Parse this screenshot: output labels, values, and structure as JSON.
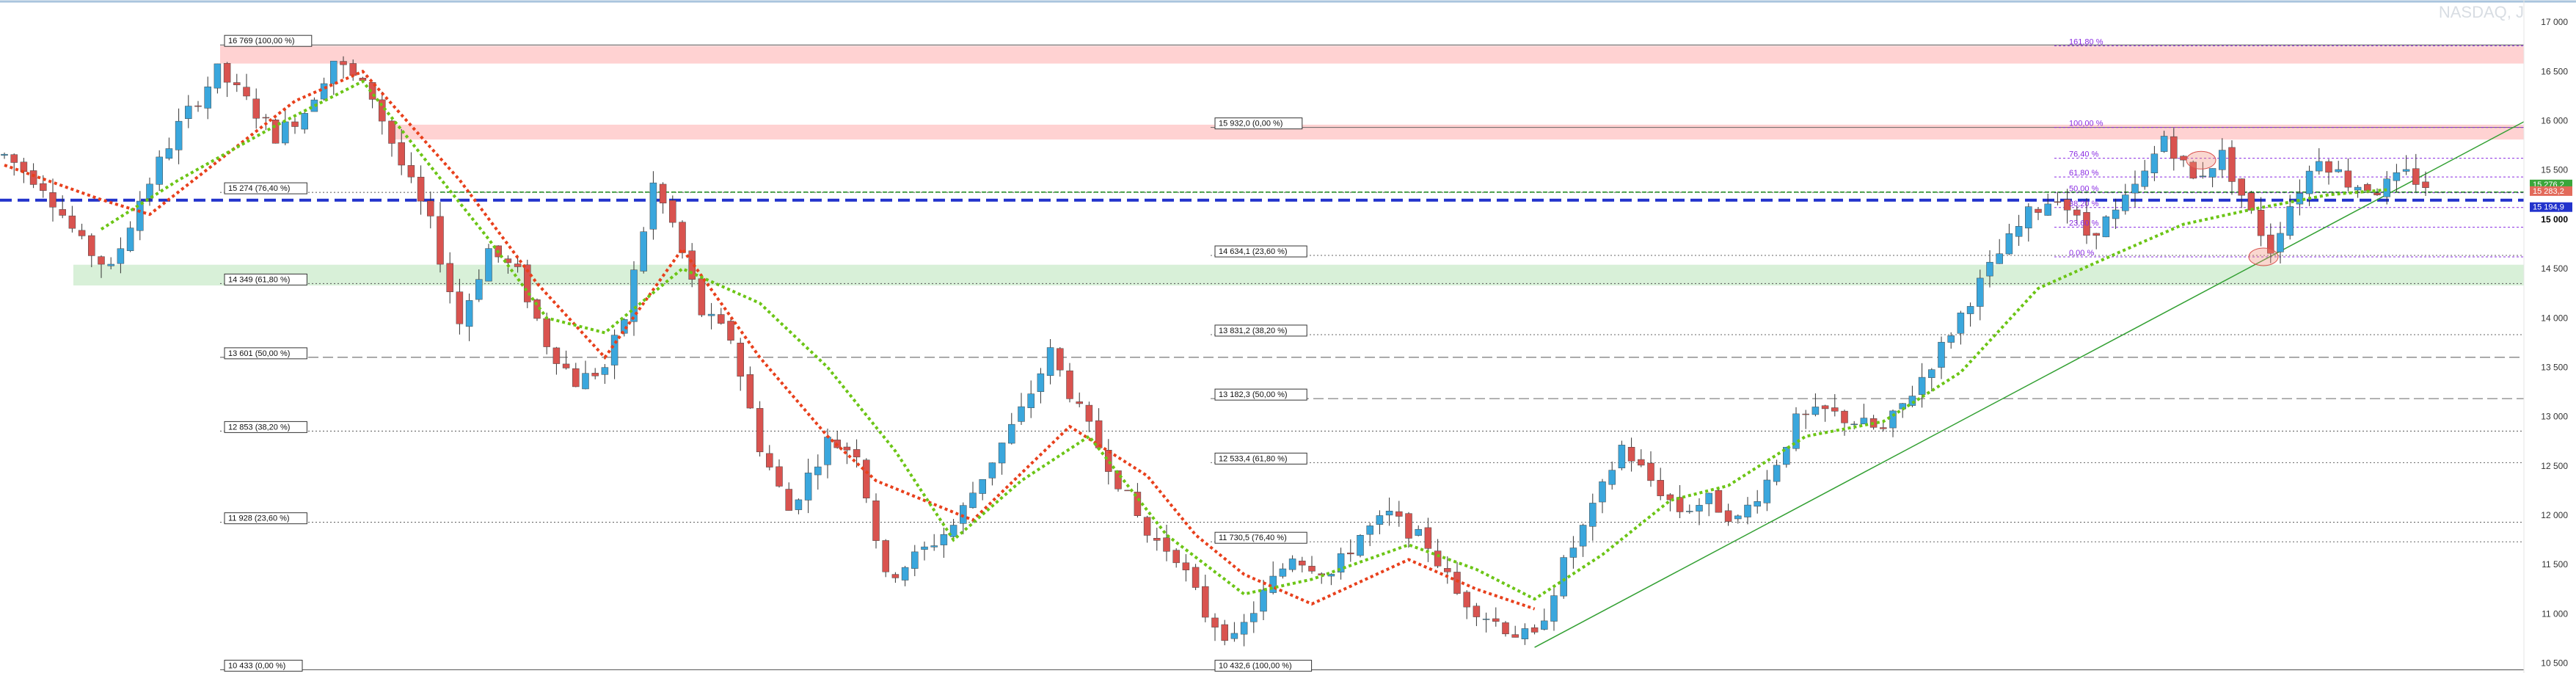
{
  "window": {
    "symbol_label": "NASDAQ, J"
  },
  "chart_data": {
    "type": "candlestick",
    "y_axis": {
      "range": [
        10400,
        17150
      ],
      "ticks": [
        17000,
        16500,
        16000,
        15500,
        15000,
        14500,
        14000,
        13500,
        13000,
        12500,
        12000,
        11500,
        11000,
        10500
      ],
      "tick_labels": [
        "17 000",
        "16 500",
        "16 000",
        "15 500",
        "15 000",
        "14 500",
        "14 000",
        "13 500",
        "13 000",
        "12 500",
        "12 000",
        "11 500",
        "11 000",
        "10 500"
      ],
      "bold_tick": "15 000"
    },
    "left_fibonacci": [
      {
        "label": "16 769 (100,00 %)",
        "value": 16769
      },
      {
        "label": "15 274 (76,40 %)",
        "value": 15274
      },
      {
        "label": "14 349 (61,80 %)",
        "value": 14349
      },
      {
        "label": "13 601 (50,00 %)",
        "value": 13601
      },
      {
        "label": "12 853 (38,20 %)",
        "value": 12853
      },
      {
        "label": "11 928 (23,60 %)",
        "value": 11928
      },
      {
        "label": "10 433 (0,00 %)",
        "value": 10433
      }
    ],
    "mid_fibonacci": [
      {
        "label": "15 932,0 (0,00 %)",
        "value": 15932
      },
      {
        "label": "14 634,1 (23,60 %)",
        "value": 14634.1
      },
      {
        "label": "13 831,2 (38,20 %)",
        "value": 13831.2
      },
      {
        "label": "13 182,3 (50,00 %)",
        "value": 13182.3
      },
      {
        "label": "12 533,4 (61,80 %)",
        "value": 12533.4
      },
      {
        "label": "11 730,5 (76,40 %)",
        "value": 11730.5
      },
      {
        "label": "10 432,6 (100,00 %)",
        "value": 10432.6
      }
    ],
    "right_fibonacci": [
      {
        "label": "161,80 %",
        "value": 16760
      },
      {
        "label": "100,00 %",
        "value": 15932
      },
      {
        "label": "76,40 %",
        "value": 15620
      },
      {
        "label": "61,80 %",
        "value": 15430
      },
      {
        "label": "50,00 %",
        "value": 15270
      },
      {
        "label": "38,20 %",
        "value": 15120
      },
      {
        "label": "23,60 %",
        "value": 14920
      },
      {
        "label": "0,00 %",
        "value": 14620
      }
    ],
    "zones": [
      {
        "name": "resistance-upper",
        "from": 16580,
        "to": 16760,
        "color": "#ffd2d2"
      },
      {
        "name": "resistance-lower",
        "from": 15810,
        "to": 15960,
        "color": "#ffd2d2"
      },
      {
        "name": "support",
        "from": 14330,
        "to": 14540,
        "color": "#d8f0d8"
      }
    ],
    "horizontal_lines": [
      {
        "name": "blue-level",
        "value": 15195,
        "color": "#2233cc",
        "style": "dashed-thick"
      },
      {
        "name": "green-level",
        "value": 15276,
        "color": "#1a8a1a",
        "style": "dashed"
      }
    ],
    "price_tags": [
      {
        "label": "15 276,2",
        "value": 15276,
        "color": "#3aa63a"
      },
      {
        "label": "15 283,2",
        "value": 15283,
        "color": "#e26a5a"
      },
      {
        "label": "15 194,9",
        "value": 15195,
        "color": "#2233cc"
      }
    ],
    "trendline": {
      "from": {
        "bar": 158,
        "value": 10660
      },
      "to": {
        "bar": 250,
        "value": 15990
      },
      "color": "#33a033"
    },
    "bar_count": 250,
    "price_path": [
      [
        0,
        15650
      ],
      [
        4,
        15350
      ],
      [
        8,
        14750
      ],
      [
        11,
        14480
      ],
      [
        14,
        15200
      ],
      [
        18,
        15950
      ],
      [
        22,
        16500
      ],
      [
        25,
        16200
      ],
      [
        28,
        15850
      ],
      [
        31,
        16100
      ],
      [
        34,
        16620
      ],
      [
        38,
        16250
      ],
      [
        41,
        15550
      ],
      [
        44,
        14950
      ],
      [
        47,
        13950
      ],
      [
        50,
        14700
      ],
      [
        53,
        14450
      ],
      [
        56,
        13750
      ],
      [
        59,
        13350
      ],
      [
        62,
        13500
      ],
      [
        64,
        14000
      ],
      [
        67,
        15350
      ],
      [
        69,
        14950
      ],
      [
        72,
        14050
      ],
      [
        75,
        13800
      ],
      [
        78,
        12700
      ],
      [
        81,
        12050
      ],
      [
        85,
        12750
      ],
      [
        88,
        12650
      ],
      [
        91,
        11350
      ],
      [
        95,
        11650
      ],
      [
        98,
        11900
      ],
      [
        101,
        12400
      ],
      [
        105,
        13050
      ],
      [
        108,
        13650
      ],
      [
        111,
        13050
      ],
      [
        115,
        12350
      ],
      [
        118,
        11800
      ],
      [
        121,
        11600
      ],
      [
        124,
        11000
      ],
      [
        127,
        10720
      ],
      [
        130,
        11200
      ],
      [
        133,
        11600
      ],
      [
        137,
        11400
      ],
      [
        140,
        11800
      ],
      [
        143,
        12000
      ],
      [
        147,
        11700
      ],
      [
        150,
        11200
      ],
      [
        153,
        10980
      ],
      [
        156,
        10800
      ],
      [
        158,
        10750
      ],
      [
        161,
        11500
      ],
      [
        164,
        12050
      ],
      [
        167,
        12700
      ],
      [
        170,
        12350
      ],
      [
        173,
        12050
      ],
      [
        176,
        12150
      ],
      [
        179,
        11950
      ],
      [
        182,
        12350
      ],
      [
        185,
        12950
      ],
      [
        188,
        13050
      ],
      [
        191,
        12950
      ],
      [
        194,
        12850
      ],
      [
        197,
        13250
      ],
      [
        200,
        13700
      ],
      [
        203,
        14200
      ],
      [
        206,
        14650
      ],
      [
        209,
        15050
      ],
      [
        212,
        15250
      ],
      [
        215,
        14850
      ],
      [
        218,
        15050
      ],
      [
        221,
        15450
      ],
      [
        223,
        15850
      ],
      [
        226,
        15400
      ],
      [
        229,
        15650
      ],
      [
        232,
        15050
      ],
      [
        234,
        14700
      ],
      [
        236,
        15150
      ],
      [
        239,
        15650
      ],
      [
        242,
        15380
      ],
      [
        245,
        15300
      ],
      [
        248,
        15450
      ],
      [
        250,
        15350
      ]
    ],
    "ma_red": [
      [
        0,
        15550
      ],
      [
        10,
        15200
      ],
      [
        15,
        15050
      ],
      [
        30,
        16200
      ],
      [
        37,
        16500
      ],
      [
        47,
        15400
      ],
      [
        55,
        14350
      ],
      [
        62,
        13600
      ],
      [
        70,
        14700
      ],
      [
        78,
        13600
      ],
      [
        85,
        12800
      ],
      [
        90,
        12350
      ],
      [
        100,
        11950
      ],
      [
        110,
        12900
      ],
      [
        118,
        12400
      ],
      [
        123,
        11800
      ],
      [
        128,
        11400
      ],
      [
        135,
        11100
      ],
      [
        145,
        11550
      ],
      [
        152,
        11250
      ],
      [
        158,
        11050
      ]
    ],
    "ma_green": [
      [
        10,
        14900
      ],
      [
        18,
        15400
      ],
      [
        28,
        15950
      ],
      [
        37,
        16400
      ],
      [
        50,
        14800
      ],
      [
        56,
        14000
      ],
      [
        62,
        13850
      ],
      [
        70,
        14500
      ],
      [
        78,
        14150
      ],
      [
        85,
        13500
      ],
      [
        92,
        12650
      ],
      [
        98,
        11750
      ],
      [
        105,
        12350
      ],
      [
        112,
        12800
      ],
      [
        120,
        11800
      ],
      [
        128,
        11200
      ],
      [
        135,
        11350
      ],
      [
        145,
        11700
      ],
      [
        152,
        11450
      ],
      [
        158,
        11150
      ],
      [
        165,
        11600
      ],
      [
        172,
        12150
      ],
      [
        178,
        12300
      ],
      [
        186,
        12800
      ],
      [
        194,
        12950
      ],
      [
        202,
        13450
      ],
      [
        210,
        14300
      ],
      [
        218,
        14650
      ],
      [
        225,
        14950
      ],
      [
        232,
        15100
      ],
      [
        240,
        15250
      ],
      [
        246,
        15300
      ]
    ],
    "grid": false
  }
}
